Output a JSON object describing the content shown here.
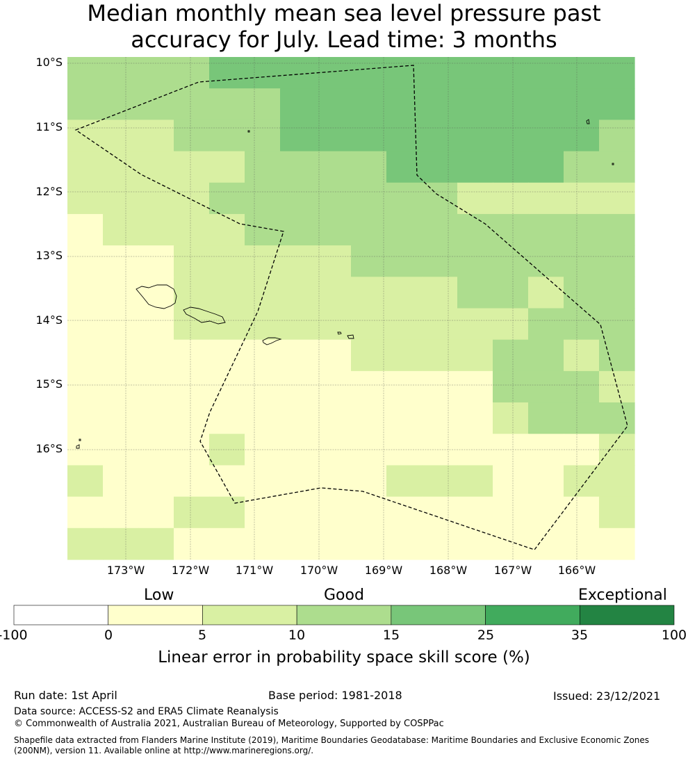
{
  "title": {
    "line1": "Median monthly mean sea level pressure past",
    "line2": "accuracy for July. Lead time: 3 months"
  },
  "axes": {
    "lat_labels": [
      "10°S",
      "11°S",
      "12°S",
      "13°S",
      "14°S",
      "15°S",
      "16°S"
    ],
    "lon_labels": [
      "173°W",
      "172°W",
      "171°W",
      "170°W",
      "169°W",
      "168°W",
      "167°W",
      "166°W"
    ]
  },
  "grid": {
    "rows": [
      [
        2,
        2,
        2,
        2,
        3,
        3,
        3,
        3,
        3,
        3,
        3,
        3,
        3,
        3,
        3,
        3
      ],
      [
        2,
        2,
        2,
        2,
        2,
        2,
        3,
        3,
        3,
        3,
        3,
        3,
        3,
        3,
        3,
        3
      ],
      [
        1,
        1,
        1,
        2,
        2,
        2,
        3,
        3,
        3,
        3,
        3,
        3,
        3,
        3,
        3,
        2
      ],
      [
        1,
        1,
        1,
        1,
        1,
        2,
        2,
        2,
        2,
        3,
        3,
        3,
        3,
        3,
        2,
        2
      ],
      [
        1,
        1,
        1,
        1,
        2,
        2,
        2,
        2,
        2,
        2,
        2,
        1,
        1,
        1,
        1,
        1
      ],
      [
        0,
        1,
        1,
        1,
        1,
        2,
        2,
        2,
        2,
        2,
        2,
        2,
        2,
        2,
        2,
        2
      ],
      [
        0,
        0,
        0,
        1,
        1,
        1,
        1,
        1,
        2,
        2,
        2,
        2,
        2,
        2,
        2,
        2
      ],
      [
        0,
        0,
        0,
        1,
        1,
        1,
        1,
        1,
        1,
        1,
        1,
        2,
        2,
        1,
        2,
        2
      ],
      [
        0,
        0,
        0,
        1,
        1,
        1,
        1,
        1,
        1,
        1,
        1,
        1,
        1,
        2,
        2,
        2
      ],
      [
        0,
        0,
        0,
        0,
        0,
        0,
        0,
        0,
        1,
        1,
        1,
        1,
        2,
        2,
        1,
        2
      ],
      [
        0,
        0,
        0,
        0,
        0,
        0,
        0,
        0,
        0,
        0,
        0,
        0,
        2,
        2,
        2,
        1
      ],
      [
        0,
        0,
        0,
        0,
        0,
        0,
        0,
        0,
        0,
        0,
        0,
        0,
        1,
        2,
        2,
        2
      ],
      [
        0,
        0,
        0,
        0,
        1,
        0,
        0,
        0,
        0,
        0,
        0,
        0,
        0,
        0,
        0,
        1
      ],
      [
        1,
        0,
        0,
        0,
        0,
        0,
        0,
        0,
        0,
        1,
        1,
        1,
        0,
        0,
        1,
        1
      ],
      [
        0,
        0,
        0,
        1,
        1,
        0,
        0,
        0,
        0,
        0,
        0,
        0,
        0,
        0,
        0,
        1
      ],
      [
        1,
        1,
        1,
        0,
        0,
        0,
        0,
        0,
        0,
        0,
        0,
        0,
        0,
        0,
        0,
        0
      ]
    ],
    "colors": [
      "#ffffcc",
      "#d9f0a3",
      "#addd8e",
      "#78c679",
      "#41ab5d",
      "#238443"
    ]
  },
  "colorbar": {
    "categories": [
      "Low",
      "Good",
      "Exceptional"
    ],
    "ticks": [
      "-100",
      "0",
      "5",
      "10",
      "15",
      "25",
      "35",
      "100"
    ],
    "colors": [
      "#ffffff",
      "#ffffcc",
      "#d9f0a3",
      "#addd8e",
      "#78c679",
      "#41ab5d",
      "#238443"
    ],
    "title": "Linear error in probability space skill score (%)"
  },
  "footer": {
    "run_date": "Run date: 1st April",
    "base_period": "Base period: 1981-2018",
    "issued": "Issued: 23/12/2021",
    "data_source": "Data source: ACCESS-S2 and ERA5 Climate Reanalysis",
    "copyright": "© Commonwealth of Australia 2021, Australian Bureau of Meteorology, Supported by COSPPac",
    "shapefile_line1": "Shapefile data extracted from Flanders Marine Institute (2019), Maritime Boundaries Geodatabase: Maritime Boundaries and Exclusive Economic Zones",
    "shapefile_line2": "(200NM), version 11. Available online at http://www.marineregions.org/."
  }
}
